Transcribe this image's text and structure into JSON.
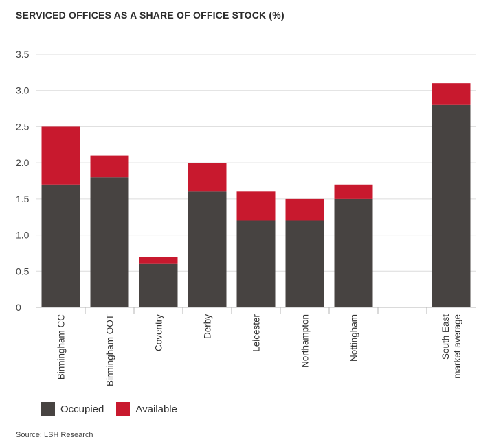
{
  "chart_data": {
    "type": "bar",
    "stacked": true,
    "title": "SERVICED OFFICES AS A SHARE OF OFFICE STOCK (%)",
    "xlabel": "",
    "ylabel": "",
    "ylim": [
      0,
      3.5
    ],
    "yticks": [
      "0",
      "0.5",
      "1.0",
      "1.5",
      "2.0",
      "2.5",
      "3.0",
      "3.5"
    ],
    "grid": true,
    "legend_position": "bottom-left",
    "categories": [
      "Birmingham CC",
      "Birmingham OOT",
      "Coventry",
      "Derby",
      "Leicester",
      "Northampton",
      "Nottingham",
      "",
      "South East\nmarket average"
    ],
    "series": [
      {
        "name": "Occupied",
        "color": "#474341",
        "values": [
          1.7,
          1.8,
          0.6,
          1.6,
          1.2,
          1.2,
          1.5,
          null,
          2.8
        ]
      },
      {
        "name": "Available",
        "color": "#c8192e",
        "values": [
          0.8,
          0.3,
          0.1,
          0.4,
          0.4,
          0.3,
          0.2,
          null,
          0.3
        ]
      }
    ]
  },
  "source": "Source: LSH Research"
}
